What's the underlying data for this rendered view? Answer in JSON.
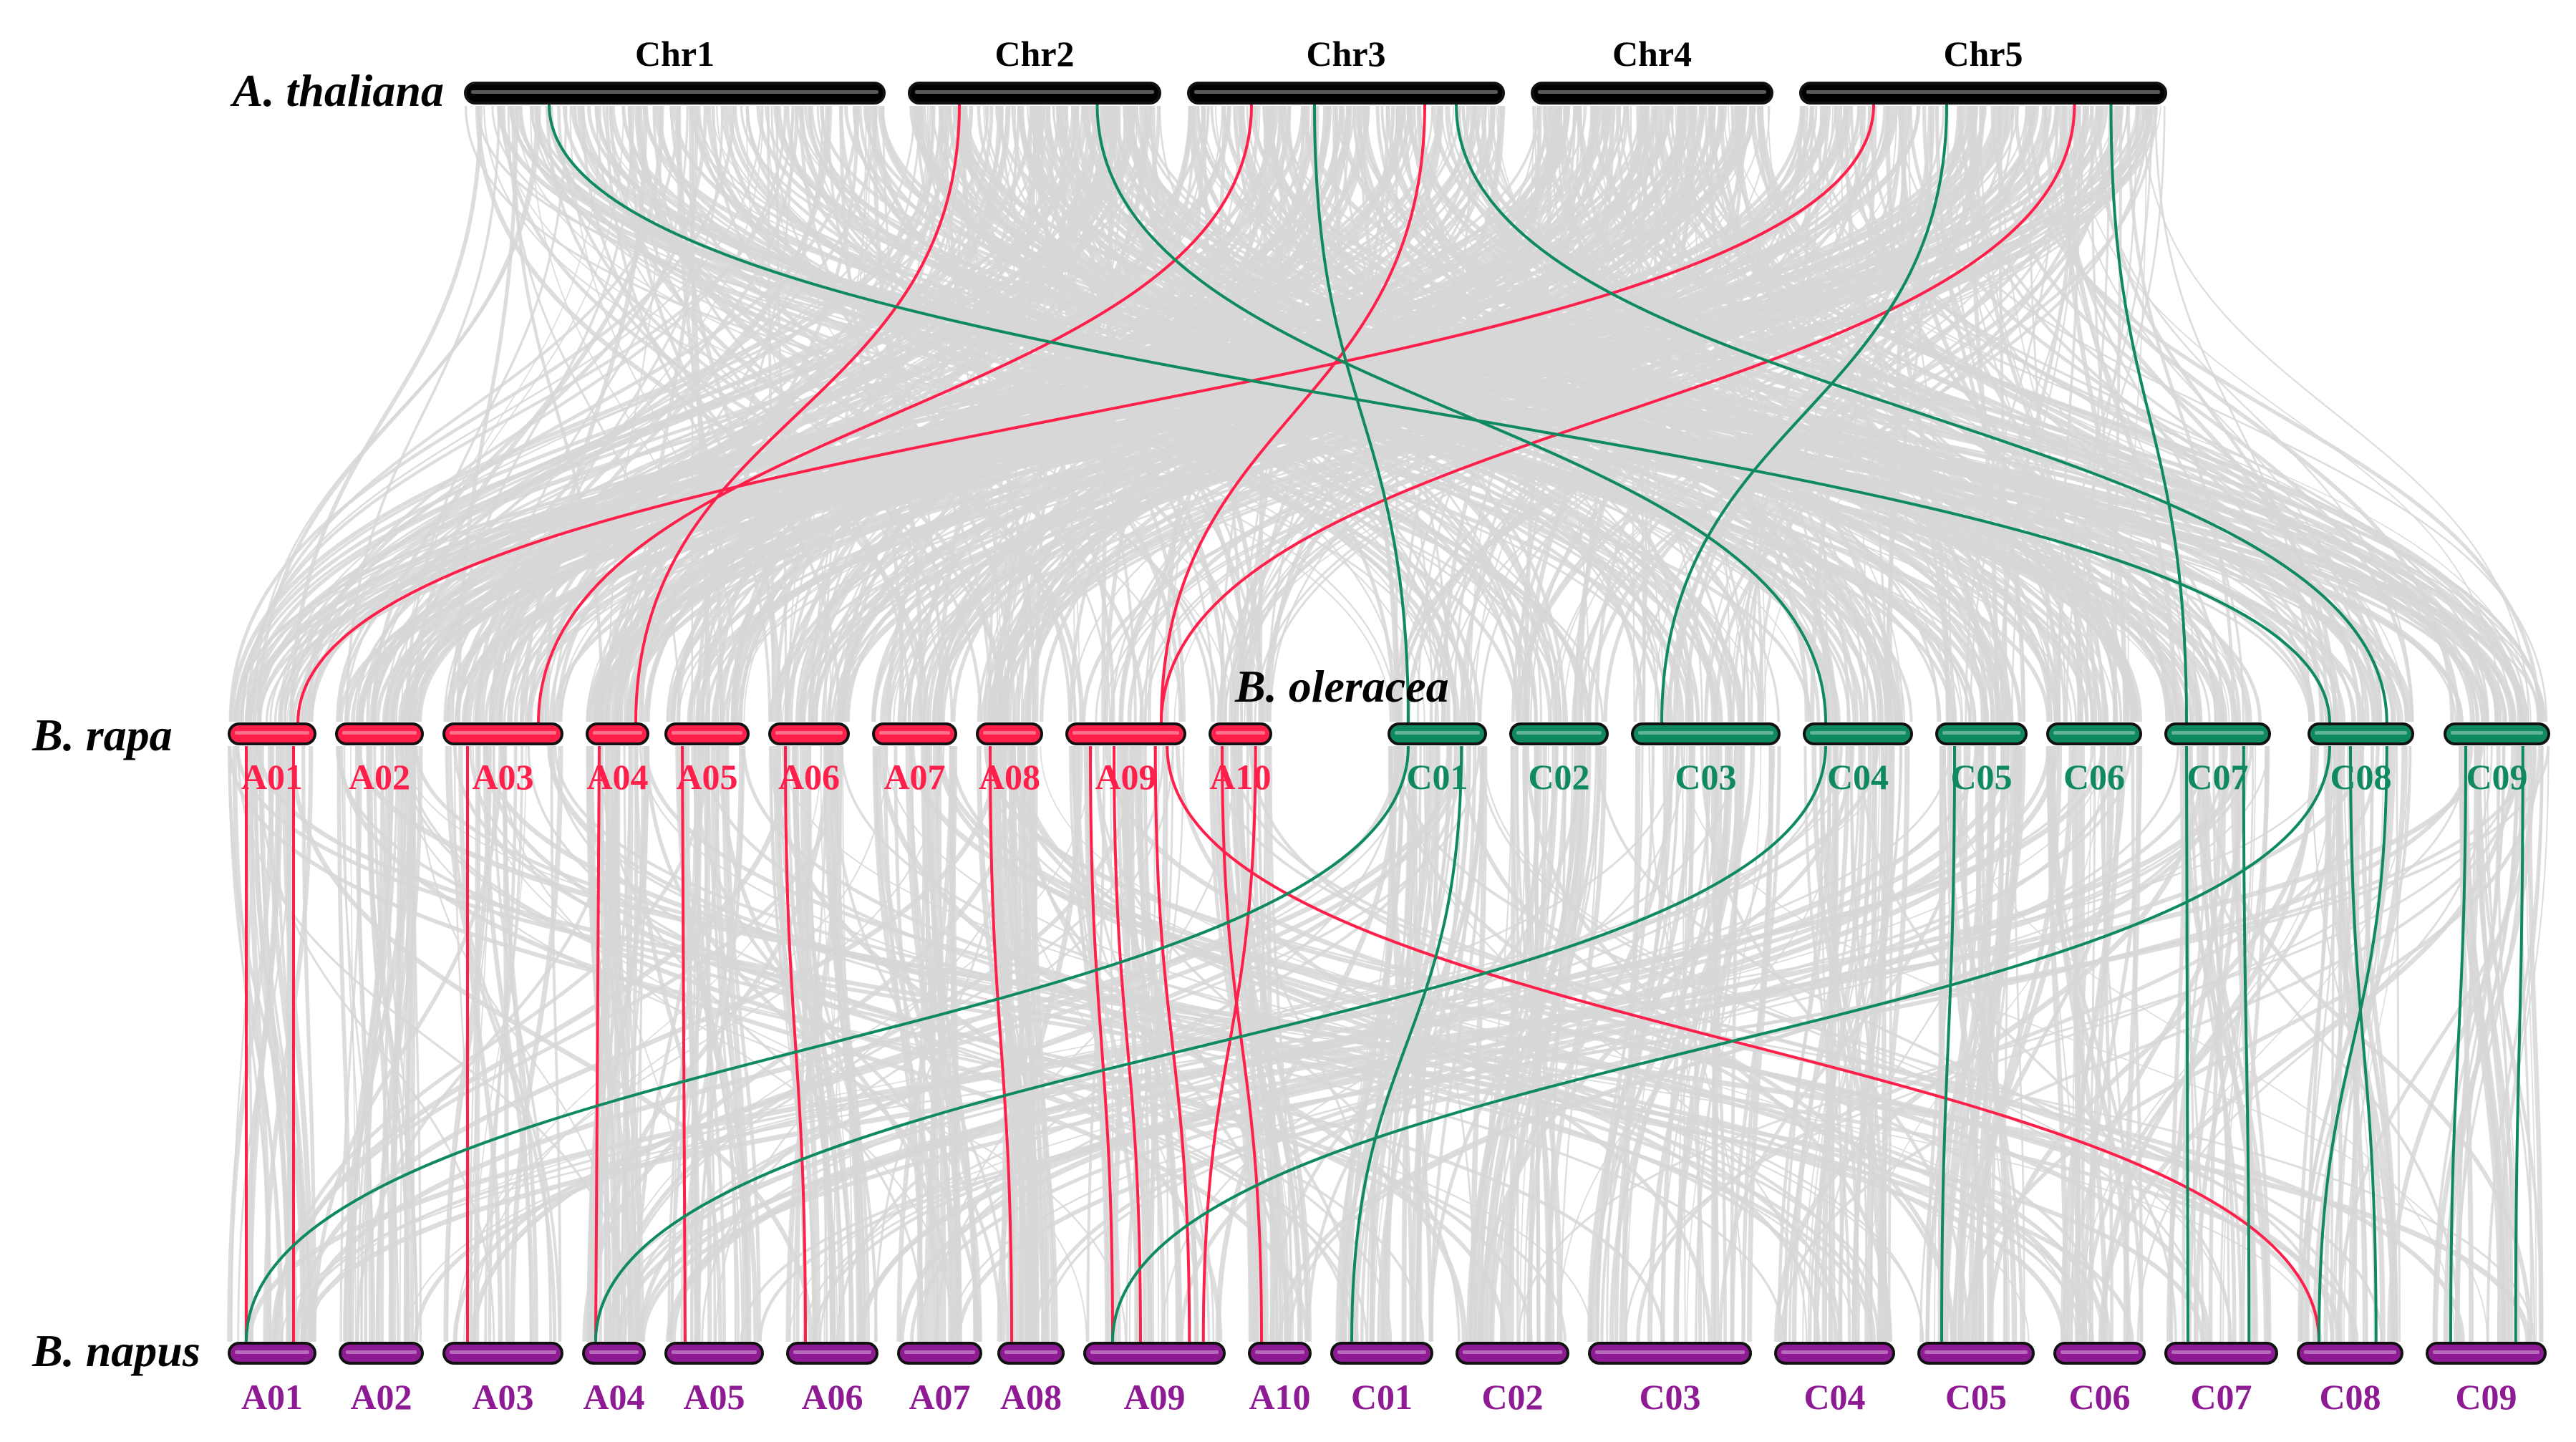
{
  "species": {
    "thaliana": "A. thaliana",
    "rapa": "B. rapa",
    "oleracea": "B. oleracea",
    "napus": "B. napus"
  },
  "chromosomes": {
    "thaliana": [
      "Chr1",
      "Chr2",
      "Chr3",
      "Chr4",
      "Chr5"
    ],
    "rapa": [
      "A01",
      "A02",
      "A03",
      "A04",
      "A05",
      "A06",
      "A07",
      "A08",
      "A09",
      "A10"
    ],
    "oleracea": [
      "C01",
      "C02",
      "C03",
      "C04",
      "C05",
      "C06",
      "C07",
      "C08",
      "C09"
    ],
    "napus": [
      "A01",
      "A02",
      "A03",
      "A04",
      "A05",
      "A06",
      "A07",
      "A08",
      "A09",
      "A10",
      "C01",
      "C02",
      "C03",
      "C04",
      "C05",
      "C06",
      "C07",
      "C08",
      "C09"
    ]
  },
  "colors": {
    "thaliana": "#000000",
    "rapa": "#ff1f4b",
    "oleracea": "#0f8a5f",
    "napus": "#8e1a94",
    "background_links": "#d7d7d7",
    "a_genome_highlight": "#ff1f4b",
    "c_genome_highlight": "#0f8a5f"
  },
  "highlighted_links": {
    "thaliana_to_rapa": [
      {
        "from": "Chr2",
        "to": "A04",
        "color": "a"
      },
      {
        "from": "Chr3",
        "to": "A03",
        "color": "a"
      },
      {
        "from": "Chr3",
        "to": "A09",
        "color": "a"
      },
      {
        "from": "Chr5",
        "to": "A01",
        "color": "a"
      },
      {
        "from": "Chr5",
        "to": "A09",
        "color": "a"
      }
    ],
    "thaliana_to_oleracea": [
      {
        "from": "Chr1",
        "to": "C08",
        "color": "c"
      },
      {
        "from": "Chr2",
        "to": "C04",
        "color": "c"
      },
      {
        "from": "Chr3",
        "to": "C01",
        "color": "c"
      },
      {
        "from": "Chr3",
        "to": "C08",
        "color": "c"
      },
      {
        "from": "Chr5",
        "to": "C03",
        "color": "c"
      },
      {
        "from": "Chr5",
        "to": "C07",
        "color": "c"
      }
    ],
    "rapa_to_napus": [
      {
        "from": "A01",
        "to": "A01",
        "color": "a"
      },
      {
        "from": "A01",
        "to": "A01",
        "color": "a"
      },
      {
        "from": "A03",
        "to": "A03",
        "color": "a"
      },
      {
        "from": "A04",
        "to": "A04",
        "color": "a"
      },
      {
        "from": "A05",
        "to": "A05",
        "color": "a"
      },
      {
        "from": "A06",
        "to": "A06",
        "color": "a"
      },
      {
        "from": "A08",
        "to": "A08",
        "color": "a"
      },
      {
        "from": "A09",
        "to": "A09",
        "color": "a"
      },
      {
        "from": "A09",
        "to": "A09",
        "color": "a"
      },
      {
        "from": "A09",
        "to": "A09",
        "color": "a"
      },
      {
        "from": "A10",
        "to": "A10",
        "color": "a"
      },
      {
        "from": "A10",
        "to": "A09",
        "color": "a"
      },
      {
        "from": "A09",
        "to": "C08",
        "color": "a"
      }
    ],
    "oleracea_to_napus": [
      {
        "from": "C01",
        "to": "A01",
        "color": "c"
      },
      {
        "from": "C04",
        "to": "A04",
        "color": "c"
      },
      {
        "from": "C08",
        "to": "A09",
        "color": "c"
      },
      {
        "from": "C01",
        "to": "C01",
        "color": "c"
      },
      {
        "from": "C05",
        "to": "C05",
        "color": "c"
      },
      {
        "from": "C07",
        "to": "C07",
        "color": "c"
      },
      {
        "from": "C07",
        "to": "C07",
        "color": "c"
      },
      {
        "from": "C08",
        "to": "C08",
        "color": "c"
      },
      {
        "from": "C08",
        "to": "C08",
        "color": "c"
      },
      {
        "from": "C09",
        "to": "C09",
        "color": "c"
      },
      {
        "from": "C09",
        "to": "C09",
        "color": "c"
      }
    ]
  }
}
